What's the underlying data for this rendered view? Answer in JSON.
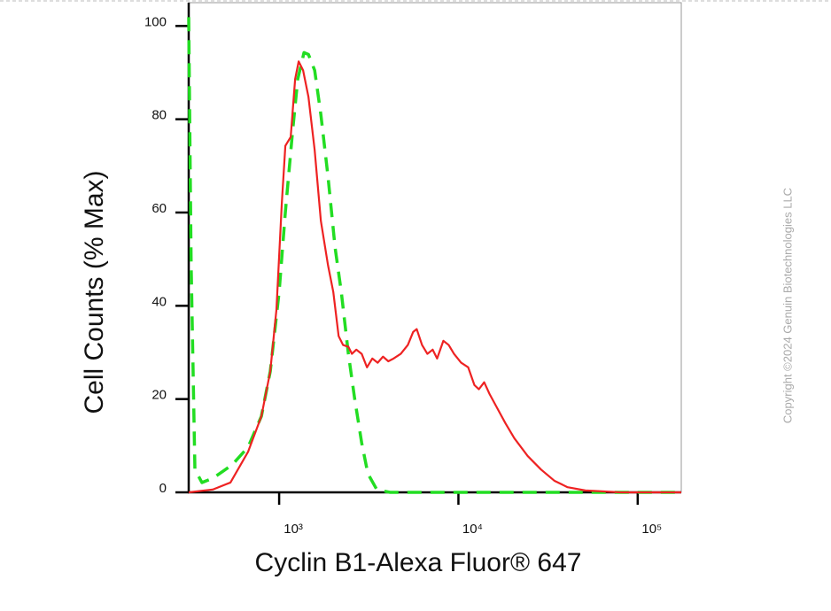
{
  "chart_data": {
    "type": "line",
    "xlabel": "Cyclin B1-Alexa Fluor® 647",
    "ylabel": "Cell Counts (% Max)",
    "watermark": "Copyright ©2024 Genuin Biotechnologies LLC",
    "xscale": "log",
    "xlim": [
      313,
      175000
    ],
    "ylim": [
      0,
      105
    ],
    "xticks": [
      {
        "value": 1000,
        "label": "10³"
      },
      {
        "value": 10000,
        "label": "10⁴"
      },
      {
        "value": 100000,
        "label": "10⁵"
      }
    ],
    "yticks": [
      0,
      20,
      40,
      60,
      80,
      100
    ],
    "grid": false,
    "series": [
      {
        "color": "#ee2222",
        "dash": false,
        "x": [
          313,
          426,
          535,
          671,
          796,
          892,
          966,
          1035,
          1083,
          1160,
          1228,
          1285,
          1360,
          1457,
          1578,
          1709,
          1873,
          2004,
          2147,
          2272,
          2433,
          2547,
          2696,
          2887,
          3091,
          3310,
          3545,
          3796,
          4064,
          4352,
          4768,
          5223,
          5592,
          5853,
          6266,
          6710,
          7185,
          7605,
          8239,
          8822,
          9446,
          10350,
          11340,
          12280,
          13000,
          13920,
          14910,
          16330,
          18300,
          20510,
          24330,
          28870,
          34250,
          40640,
          51050,
          80530,
          175000
        ],
        "values": [
          0,
          0.6,
          2.1,
          8.7,
          16.3,
          25.9,
          39.2,
          62.0,
          74.3,
          76.2,
          88.6,
          92.4,
          90.5,
          84.8,
          73.4,
          58.2,
          48.7,
          43.0,
          33.5,
          31.6,
          31.2,
          29.7,
          30.6,
          29.7,
          26.8,
          28.7,
          27.8,
          29.1,
          28.1,
          28.7,
          29.7,
          31.6,
          34.4,
          35.0,
          31.6,
          29.7,
          30.6,
          28.7,
          32.5,
          31.6,
          29.7,
          27.8,
          26.8,
          23.0,
          22.1,
          23.6,
          21.1,
          18.3,
          14.8,
          11.6,
          7.8,
          4.9,
          2.5,
          1.1,
          0.4,
          0,
          0
        ]
      },
      {
        "color": "#22dd22",
        "dash": true,
        "x": [
          313,
          323,
          339,
          371,
          426,
          547,
          671,
          796,
          892,
          1000,
          1083,
          1187,
          1270,
          1376,
          1457,
          1578,
          1709,
          1873,
          2051,
          2221,
          2433,
          2635,
          2887,
          3126,
          3505,
          4157,
          175000
        ],
        "values": [
          101.9,
          48.7,
          4.9,
          2.1,
          3.0,
          5.9,
          9.7,
          16.3,
          25.9,
          43.0,
          60.1,
          77.2,
          88.6,
          94.3,
          93.9,
          90.5,
          81.0,
          67.7,
          52.5,
          43.0,
          29.7,
          20.2,
          10.6,
          4.0,
          0.6,
          0,
          0
        ]
      }
    ]
  }
}
